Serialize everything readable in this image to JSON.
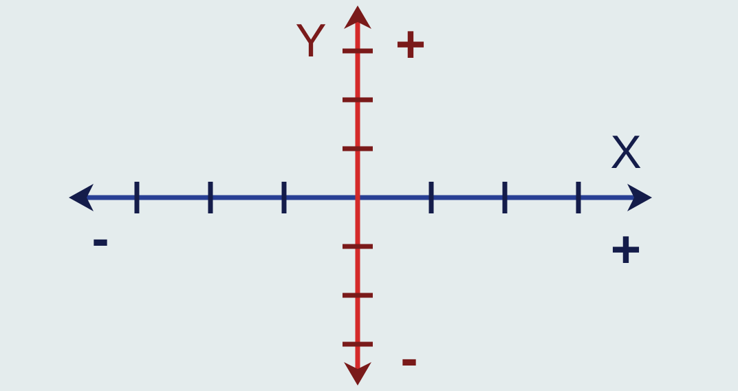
{
  "axes": {
    "x": {
      "label": "X",
      "positive_sign": "+",
      "negative_sign": "-",
      "tick_count_per_side": 3,
      "color": "#283f94",
      "tick_color": "#141c4a",
      "label_color": "#141c4a"
    },
    "y": {
      "label": "Y",
      "positive_sign": "+",
      "negative_sign": "-",
      "tick_count_per_side": 3,
      "color": "#d42a2a",
      "tick_color": "#7a1a1a",
      "label_color": "#7a1a1a"
    }
  }
}
